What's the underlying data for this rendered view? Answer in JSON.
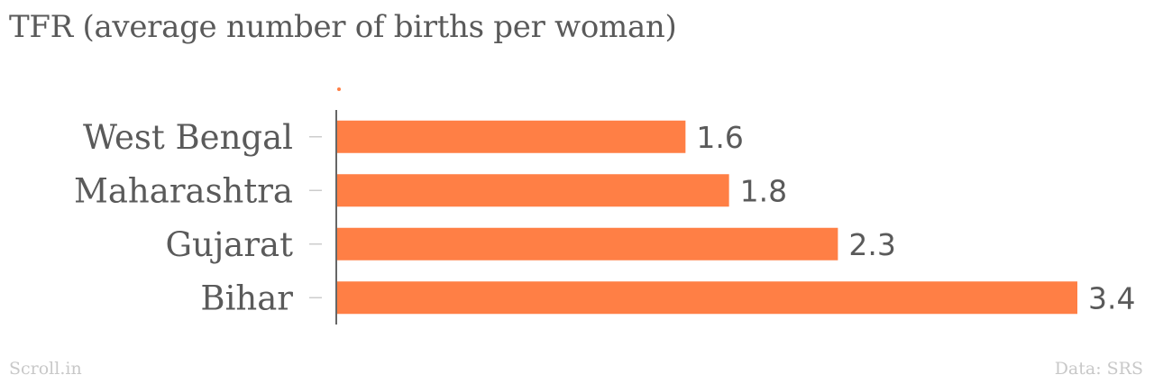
{
  "header": {
    "title": "TFR (average number of births per woman)"
  },
  "footer": {
    "source_brand": "Scroll.in",
    "data_credit": "Data: SRS"
  },
  "colors": {
    "bar": "#FF7F45",
    "text": "#5a5a5a",
    "axis": "#333333",
    "tick": "#cccccc",
    "footer": "#c8c8c8"
  },
  "chart_data": {
    "type": "bar",
    "orientation": "horizontal",
    "title": "TFR (average number of births per woman)",
    "xlabel": "",
    "ylabel": "",
    "categories": [
      "West Bengal",
      "Maharashtra",
      "Gujarat",
      "Bihar"
    ],
    "values": [
      1.6,
      1.8,
      2.3,
      3.4
    ],
    "value_labels": [
      "1.6",
      "1.8",
      "2.3",
      "3.4"
    ],
    "xlim": [
      0,
      3.4
    ],
    "grid": false
  }
}
